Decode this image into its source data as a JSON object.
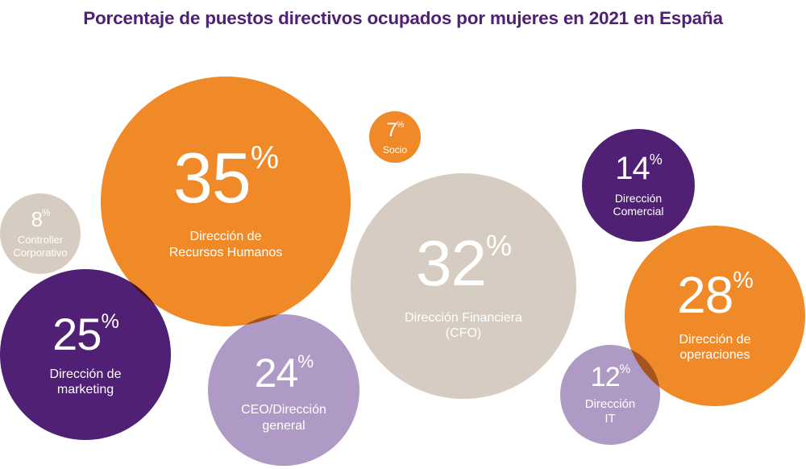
{
  "chart_data": {
    "type": "bubble",
    "title": "Porcentaje de puestos directivos ocupados por mujeres en 2021 en España",
    "unit": "%",
    "colors": {
      "orange": "#F08A28",
      "purple": "#4F2073",
      "beige": "#D6CCC1",
      "lavender": "#AF9AC6"
    },
    "series": [
      {
        "value": 35,
        "label_lines": [
          "Dirección de",
          "Recursos Humanos"
        ],
        "color": "#F08A28"
      },
      {
        "value": 8,
        "label_lines": [
          "Controller",
          "Corporativo"
        ],
        "color": "#D6CCC1"
      },
      {
        "value": 25,
        "label_lines": [
          "Dirección de",
          "marketing"
        ],
        "color": "#4F2073"
      },
      {
        "value": 24,
        "label_lines": [
          "CEO/Dirección",
          "general"
        ],
        "color": "#AF9AC6"
      },
      {
        "value": 7,
        "label_lines": [
          "Socio"
        ],
        "color": "#F08A28"
      },
      {
        "value": 32,
        "label_lines": [
          "Dirección Financiera",
          "(CFO)"
        ],
        "color": "#D6CCC1"
      },
      {
        "value": 14,
        "label_lines": [
          "Dirección",
          "Comercial"
        ],
        "color": "#4F2073"
      },
      {
        "value": 28,
        "label_lines": [
          "Dirección de",
          "operaciones"
        ],
        "color": "#F08A28"
      },
      {
        "value": 12,
        "label_lines": [
          "Dirección",
          "IT"
        ],
        "color": "#AF9AC6"
      }
    ]
  }
}
